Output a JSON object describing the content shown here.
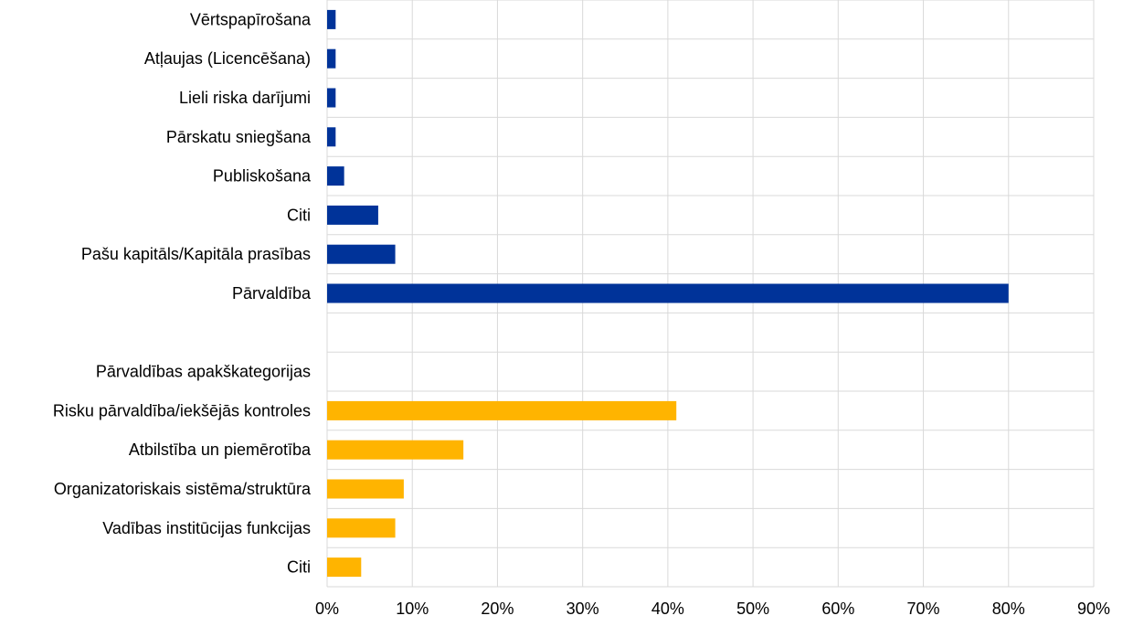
{
  "chart_data": {
    "type": "bar",
    "orientation": "horizontal",
    "title": "",
    "xlabel": "",
    "ylabel": "",
    "xlim": [
      0,
      90
    ],
    "x_ticks": [
      "0%",
      "10%",
      "20%",
      "30%",
      "40%",
      "50%",
      "60%",
      "70%",
      "80%",
      "90%"
    ],
    "grid": true,
    "categories": [
      "Vērtspapīrošana",
      "Atļaujas (Licencēšana)",
      "Lieli riska darījumi",
      "Pārskatu sniegšana",
      "Publiskošana",
      "Citi",
      "Pašu kapitāls/Kapitāla prasības",
      "Pārvaldība",
      "",
      "Pārvaldības apakškategorijas",
      "Risku pārvaldība/iekšējās kontroles",
      "Atbilstība un piemērotība",
      "Organizatoriskais sistēma/struktūra",
      "Vadības institūcijas funkcijas",
      "Citi"
    ],
    "values": [
      1,
      1,
      1,
      1,
      2,
      6,
      8,
      80,
      null,
      null,
      41,
      16,
      9,
      8,
      4
    ],
    "colors": [
      "#003399",
      "#003399",
      "#003399",
      "#003399",
      "#003399",
      "#003399",
      "#003399",
      "#003399",
      null,
      null,
      "#FFB400",
      "#FFB400",
      "#FFB400",
      "#FFB400",
      "#FFB400"
    ],
    "grid_color": "#d9d9d9"
  }
}
